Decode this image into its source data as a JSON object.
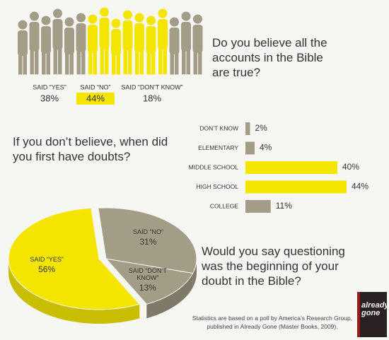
{
  "chart_data": [
    {
      "type": "pictogram",
      "title": "Do you believe all the accounts in the Bible are true?",
      "categories": [
        "SAID “YES”",
        "SAID “NO”",
        "SAID “DON’T KNOW”"
      ],
      "values": [
        38,
        44,
        18
      ],
      "value_labels": [
        "38%",
        "44%",
        "18%"
      ],
      "colors": [
        "#a39d88",
        "#f3e500",
        "#a39d88"
      ],
      "label_highlight": [
        false,
        true,
        false
      ]
    },
    {
      "type": "bar",
      "title": "If you don’t believe, when did you first have doubts?",
      "categories": [
        "DON’T KNOW",
        "ELEMENTARY",
        "MIDDLE SCHOOL",
        "HIGH SCHOOL",
        "COLLEGE"
      ],
      "values": [
        2,
        4,
        40,
        44,
        11
      ],
      "value_labels": [
        "2%",
        "4%",
        "40%",
        "44%",
        "11%"
      ],
      "colors": [
        "#a39d88",
        "#a39d88",
        "#f3e500",
        "#f3e500",
        "#a39d88"
      ]
    },
    {
      "type": "pie",
      "title": "Would you say questioning was the beginning of your doubt in the Bible?",
      "categories": [
        "SAID “NO”",
        "SAID “DON’T KNOW”",
        "SAID “YES”"
      ],
      "values": [
        31,
        13,
        56
      ],
      "value_labels": [
        "31%",
        "13%",
        "56%"
      ],
      "colors": [
        "#a39d88",
        "#a39d88",
        "#f3e500"
      ]
    }
  ],
  "footnote": "Statistics are based on a poll by America’s Research Group, published in Already Gone (Master Books, 2009).",
  "book_title": "already gone"
}
